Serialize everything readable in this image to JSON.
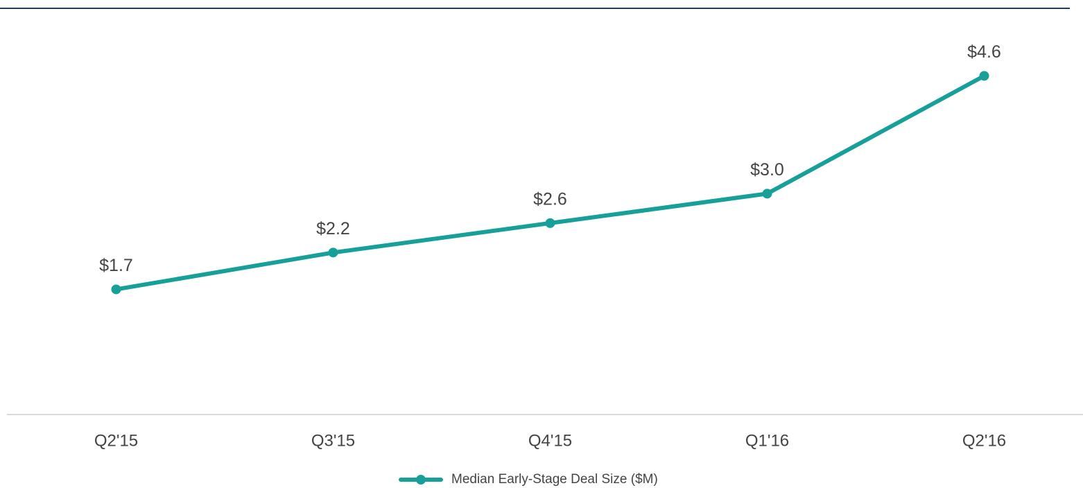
{
  "chart_data": {
    "type": "line",
    "categories": [
      "Q2'15",
      "Q3'15",
      "Q4'15",
      "Q1'16",
      "Q2'16"
    ],
    "series": [
      {
        "name": "Median Early-Stage Deal Size ($M)",
        "color": "#17a09a",
        "values": [
          1.7,
          2.2,
          2.6,
          3.0,
          4.6
        ],
        "value_labels": [
          "$1.7",
          "$2.2",
          "$2.6",
          "$3.0",
          "$4.6"
        ]
      }
    ],
    "ylim": [
      0,
      5
    ],
    "grid": false,
    "legend": "bottom"
  }
}
